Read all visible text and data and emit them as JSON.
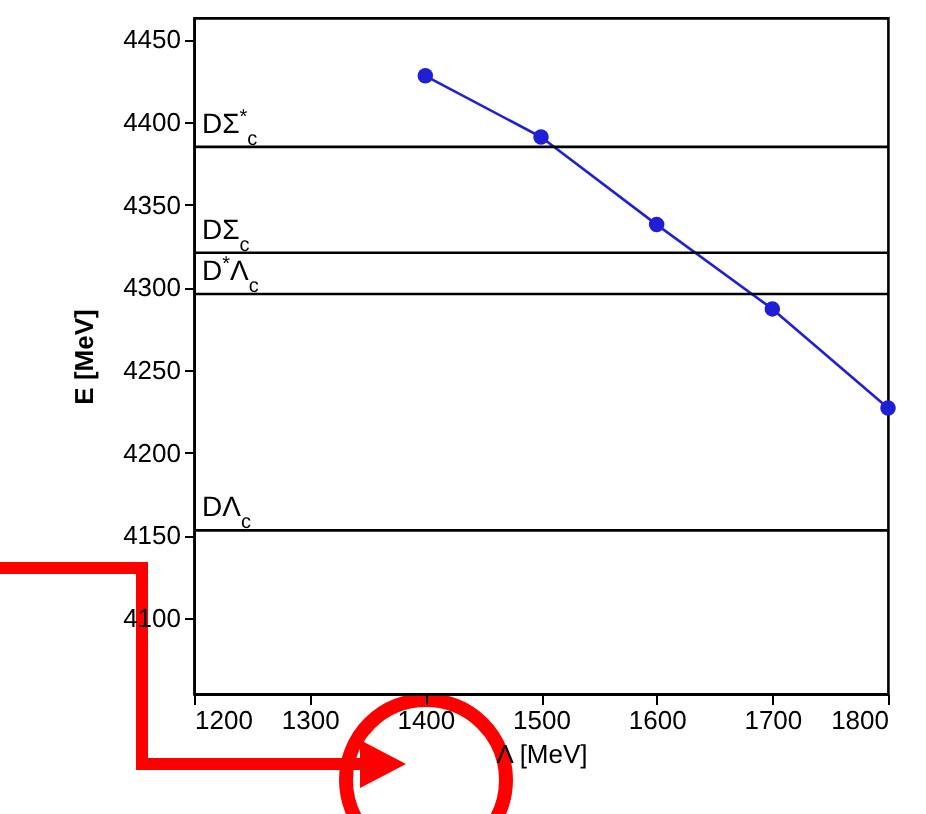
{
  "chart_data": {
    "type": "line",
    "xlabel": "Λ [MeV]",
    "ylabel": "E [MeV]",
    "x": [
      1400,
      1500,
      1600,
      1700,
      1800
    ],
    "series": [
      {
        "color": "#1f1fd6",
        "values": [
          4428,
          4391,
          4338,
          4287,
          4227
        ]
      }
    ],
    "xlim": [
      1200,
      1800
    ],
    "ylim": [
      4054,
      4463
    ],
    "xticks": [
      1200,
      1300,
      1400,
      1500,
      1600,
      1700,
      1800
    ],
    "yticks": [
      4100,
      4150,
      4200,
      4250,
      4300,
      4350,
      4400,
      4450
    ],
    "ref_lines": [
      {
        "axis": "y",
        "value": 4385,
        "label": "DΣ$^{*}$$_{c}$",
        "color": "#000000"
      },
      {
        "axis": "y",
        "value": 4321,
        "label": "DΣ$_{c}$",
        "color": "#000000"
      },
      {
        "axis": "y",
        "value": 4296,
        "label": "D$^{*}$Λ$_{c}$",
        "color": "#000000"
      },
      {
        "axis": "y",
        "value": 4153,
        "label": "DΛ$_{c}$",
        "color": "#000000"
      }
    ],
    "marker": "circle",
    "line_style": "solid",
    "grid": false
  }
}
